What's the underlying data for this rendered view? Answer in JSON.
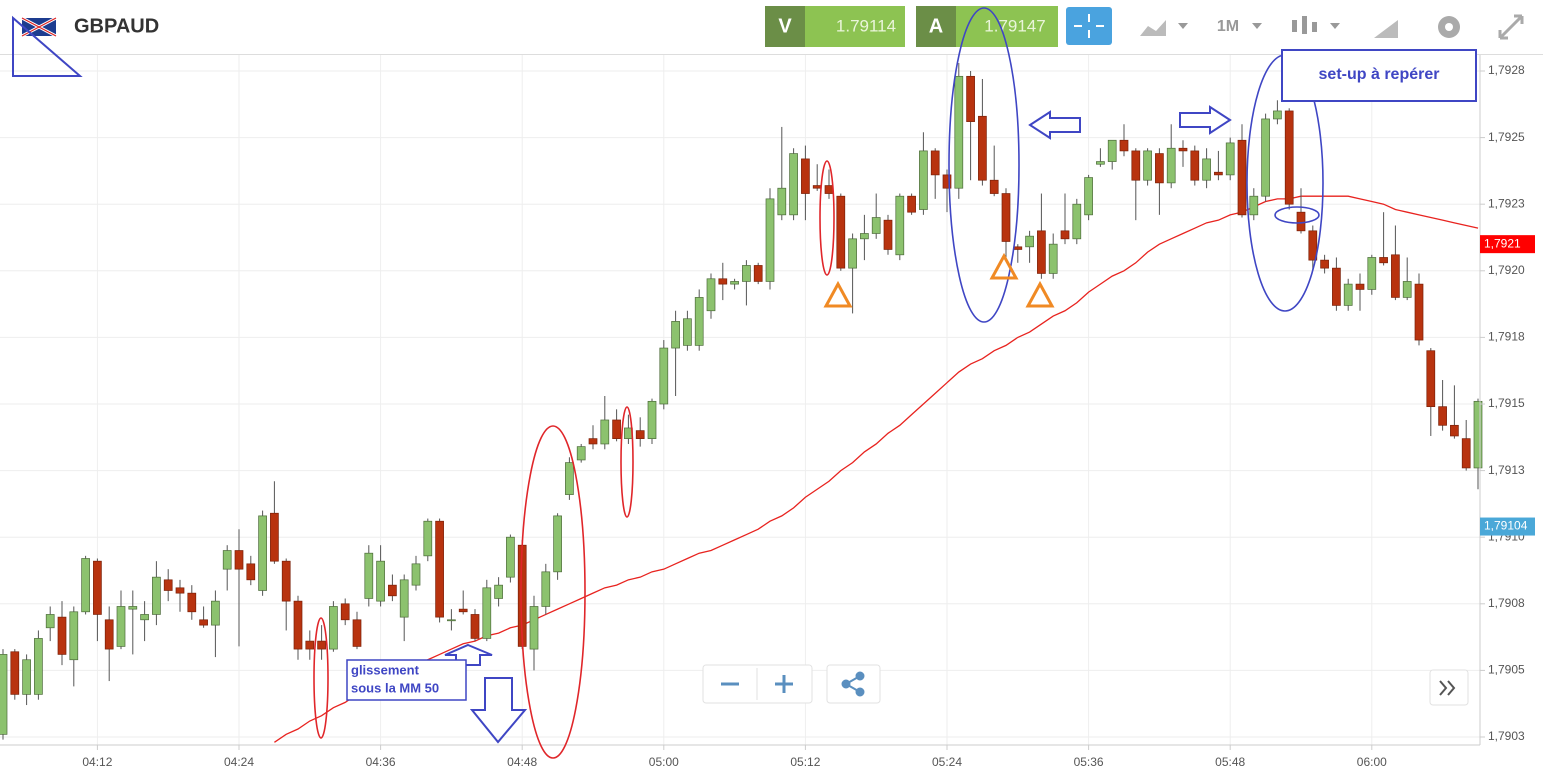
{
  "chart_data": {
    "type": "candlestick",
    "symbol": "GBPAUD",
    "bid": {
      "label": "V",
      "value": 1.79114
    },
    "ask": {
      "label": "A",
      "value": 1.79147
    },
    "timeframe": "1M",
    "up_color": "#8cc26e",
    "down_color": "#b8330f",
    "categories": [
      null,
      null,
      null,
      null,
      null,
      null,
      null,
      null,
      "04:12",
      null,
      null,
      null,
      null,
      null,
      null,
      null,
      null,
      null,
      null,
      null,
      "04:24",
      null,
      null,
      null,
      null,
      null,
      null,
      null,
      null,
      null,
      null,
      null,
      "04:36",
      null,
      null,
      null,
      null,
      null,
      null,
      null,
      null,
      null,
      null,
      null,
      "04:48",
      null,
      null,
      null,
      null,
      null,
      null,
      null,
      null,
      null,
      null,
      null,
      "05:00",
      null,
      null,
      null,
      null,
      null,
      null,
      null,
      null,
      null,
      null,
      null,
      "05:12",
      null,
      null,
      null,
      null,
      null,
      null,
      null,
      null,
      null,
      null,
      null,
      "05:24",
      null,
      null,
      null,
      null,
      null,
      null,
      null,
      null,
      null,
      null,
      null,
      "05:36",
      null,
      null,
      null,
      null,
      null,
      null,
      null,
      null,
      null,
      null,
      null,
      "05:48",
      null,
      null,
      null,
      null,
      null,
      null,
      null,
      null,
      null,
      null,
      null,
      "06:00",
      null,
      null,
      null,
      null,
      null,
      null,
      null,
      null,
      null
    ],
    "ohlc": {
      "open": [
        1.79026,
        1.79057,
        1.79041,
        1.79041,
        1.79066,
        1.7907,
        1.79054,
        1.79072,
        1.79091,
        1.79069,
        1.79059,
        1.79073,
        1.79069,
        1.79071,
        1.79084,
        1.79081,
        1.79079,
        1.79069,
        1.79067,
        1.79088,
        1.79095,
        1.7909,
        1.7908,
        1.79109,
        1.79091,
        1.79076,
        1.79061,
        1.79061,
        1.79058,
        1.79075,
        1.79069,
        1.79077,
        1.79076,
        1.79082,
        1.7907,
        1.79082,
        1.79093,
        1.79106,
        1.79069,
        1.79073,
        1.79071,
        1.79062,
        1.79077,
        1.79085,
        1.79097,
        1.79058,
        1.79074,
        1.79087,
        1.79116,
        1.79129,
        1.79137,
        1.79135,
        1.79144,
        1.79137,
        1.7914,
        1.79137,
        1.7915,
        1.79171,
        1.79172,
        1.79172,
        1.79185,
        1.79197,
        1.79195,
        1.79196,
        1.79202,
        1.79196,
        1.79221,
        1.79221,
        1.79242,
        1.79232,
        1.79232,
        1.79228,
        1.79201,
        1.79212,
        1.79214,
        1.79219,
        1.79206,
        1.79228,
        1.79223,
        1.79245,
        1.79236,
        1.79231,
        1.79273,
        1.79258,
        1.79234,
        1.79229,
        1.79209,
        1.79209,
        1.79215,
        1.79199,
        1.79215,
        1.79212,
        1.79221,
        1.7924,
        1.79241,
        1.79249,
        1.79245,
        1.79234,
        1.79244,
        1.79233,
        1.79246,
        1.79245,
        1.79234,
        1.79237,
        1.79236,
        1.79249,
        1.79221,
        1.79228,
        1.79257,
        1.7926,
        1.79222,
        1.79215,
        1.79204,
        1.79201,
        1.79187,
        1.79195,
        1.79193,
        1.79205,
        1.79206,
        1.7919,
        1.79195,
        1.7917,
        1.79149,
        1.79142,
        1.79137,
        1.79126
      ],
      "high": [
        1.79058,
        1.79058,
        1.79056,
        1.79065,
        1.79074,
        1.79076,
        1.79074,
        1.79093,
        1.79092,
        1.79074,
        1.7908,
        1.7908,
        1.79076,
        1.79091,
        1.79088,
        1.79084,
        1.79082,
        1.79074,
        1.7908,
        1.79097,
        1.79103,
        1.79093,
        1.7911,
        1.79121,
        1.79092,
        1.79078,
        1.79065,
        1.79067,
        1.79076,
        1.79077,
        1.79072,
        1.79097,
        1.79097,
        1.79086,
        1.79086,
        1.79093,
        1.79107,
        1.79107,
        1.79073,
        1.7908,
        1.79073,
        1.79084,
        1.79085,
        1.79101,
        1.79099,
        1.79078,
        1.7909,
        1.79109,
        1.7913,
        1.79135,
        1.79142,
        1.79153,
        1.79148,
        1.79146,
        1.79145,
        1.79152,
        1.79174,
        1.79185,
        1.79185,
        1.79193,
        1.79199,
        1.79203,
        1.79197,
        1.79204,
        1.79203,
        1.79231,
        1.79254,
        1.79246,
        1.79247,
        1.7924,
        1.79238,
        1.79229,
        1.79214,
        1.79221,
        1.79229,
        1.79221,
        1.79229,
        1.79229,
        1.79252,
        1.79246,
        1.79238,
        1.79278,
        1.79275,
        1.79272,
        1.79247,
        1.79231,
        1.7921,
        1.79215,
        1.79229,
        1.79214,
        1.79229,
        1.79227,
        1.79236,
        1.79246,
        1.79249,
        1.79255,
        1.79246,
        1.79246,
        1.79246,
        1.79255,
        1.79249,
        1.79247,
        1.79246,
        1.79245,
        1.7925,
        1.79255,
        1.79231,
        1.79259,
        1.79264,
        1.79261,
        1.79231,
        1.79217,
        1.79206,
        1.79205,
        1.79197,
        1.79199,
        1.79206,
        1.79222,
        1.79217,
        1.79205,
        1.79199,
        1.79171,
        1.79159,
        1.79157,
        1.79144,
        1.79152
      ],
      "low": [
        1.79024,
        1.79039,
        1.79037,
        1.79039,
        1.79061,
        1.79052,
        1.79044,
        1.79071,
        1.79061,
        1.79046,
        1.79058,
        1.79056,
        1.79061,
        1.79067,
        1.79076,
        1.79072,
        1.79069,
        1.79066,
        1.79055,
        1.7908,
        1.79059,
        1.79082,
        1.79078,
        1.7909,
        1.79065,
        1.79054,
        1.79054,
        1.79054,
        1.79057,
        1.79067,
        1.79058,
        1.79074,
        1.79074,
        1.79076,
        1.79061,
        1.7908,
        1.79091,
        1.79068,
        1.79065,
        1.79071,
        1.79061,
        1.79061,
        1.79074,
        1.79083,
        1.79058,
        1.7905,
        1.79071,
        1.79084,
        1.79114,
        1.79128,
        1.79133,
        1.79133,
        1.79136,
        1.79135,
        1.79134,
        1.79135,
        1.79148,
        1.79153,
        1.7917,
        1.7917,
        1.79182,
        1.79189,
        1.79193,
        1.79187,
        1.79195,
        1.79193,
        1.79219,
        1.79219,
        1.79219,
        1.7923,
        1.79227,
        1.792,
        1.79184,
        1.79204,
        1.79212,
        1.79206,
        1.79204,
        1.79221,
        1.79221,
        1.79227,
        1.79222,
        1.79227,
        1.79234,
        1.79232,
        1.79228,
        1.79205,
        1.79203,
        1.79203,
        1.79197,
        1.79197,
        1.7921,
        1.7921,
        1.79219,
        1.79239,
        1.79238,
        1.79243,
        1.79219,
        1.79232,
        1.79221,
        1.79231,
        1.79239,
        1.79232,
        1.79231,
        1.79234,
        1.79234,
        1.7922,
        1.79219,
        1.79226,
        1.79255,
        1.79223,
        1.79214,
        1.792,
        1.79199,
        1.79185,
        1.79185,
        1.79185,
        1.79191,
        1.79202,
        1.79189,
        1.79189,
        1.79172,
        1.79138,
        1.7914,
        1.79137,
        1.79125,
        1.79118
      ],
      "close": [
        1.79056,
        1.79041,
        1.79054,
        1.79062,
        1.79071,
        1.79056,
        1.79072,
        1.79092,
        1.79071,
        1.79058,
        1.79074,
        1.79074,
        1.79071,
        1.79085,
        1.7908,
        1.79079,
        1.79072,
        1.79067,
        1.79076,
        1.79095,
        1.79088,
        1.79084,
        1.79108,
        1.79091,
        1.79076,
        1.79058,
        1.79058,
        1.79058,
        1.79074,
        1.79069,
        1.79059,
        1.79094,
        1.79091,
        1.79078,
        1.79084,
        1.7909,
        1.79106,
        1.7907,
        1.79069,
        1.79072,
        1.79062,
        1.79081,
        1.79082,
        1.791,
        1.79059,
        1.79074,
        1.79087,
        1.79108,
        1.79128,
        1.79134,
        1.79135,
        1.79144,
        1.79137,
        1.79141,
        1.79137,
        1.79151,
        1.79171,
        1.79181,
        1.79182,
        1.7919,
        1.79197,
        1.79195,
        1.79196,
        1.79202,
        1.79196,
        1.79227,
        1.79231,
        1.79244,
        1.79229,
        1.79231,
        1.79229,
        1.79201,
        1.79212,
        1.79214,
        1.7922,
        1.79208,
        1.79228,
        1.79222,
        1.79245,
        1.79236,
        1.79231,
        1.79273,
        1.79256,
        1.79234,
        1.79229,
        1.79211,
        1.79208,
        1.79213,
        1.79199,
        1.7921,
        1.79212,
        1.79225,
        1.79235,
        1.79241,
        1.79249,
        1.79245,
        1.79234,
        1.79245,
        1.79233,
        1.79246,
        1.79245,
        1.79234,
        1.79242,
        1.79236,
        1.79248,
        1.79221,
        1.79228,
        1.79257,
        1.7926,
        1.79225,
        1.79215,
        1.79204,
        1.79201,
        1.79187,
        1.79195,
        1.79193,
        1.79205,
        1.79203,
        1.7919,
        1.79196,
        1.79174,
        1.79149,
        1.79142,
        1.79138,
        1.79126,
        1.79151
      ]
    },
    "moving_average": {
      "color": "#e8231f",
      "values": [
        null,
        null,
        null,
        null,
        null,
        null,
        null,
        null,
        null,
        null,
        null,
        null,
        null,
        null,
        null,
        null,
        null,
        null,
        null,
        null,
        null,
        null,
        null,
        1.79023,
        1.79026,
        1.79028,
        1.79031,
        1.79033,
        1.79036,
        1.79038,
        1.79041,
        1.79043,
        1.79046,
        1.79048,
        1.7905,
        1.79052,
        1.79054,
        1.79056,
        1.79058,
        1.7906,
        1.79061,
        1.79063,
        1.79064,
        1.79066,
        1.79067,
        1.79069,
        1.79071,
        1.79073,
        1.79075,
        1.79077,
        1.79079,
        1.79081,
        1.79082,
        1.79084,
        1.79085,
        1.79087,
        1.79088,
        1.7909,
        1.79092,
        1.79094,
        1.79095,
        1.79097,
        1.79099,
        1.79101,
        1.79103,
        1.79106,
        1.79108,
        1.79111,
        1.79115,
        1.79118,
        1.79121,
        1.79125,
        1.79128,
        1.79132,
        1.79135,
        1.79139,
        1.79142,
        1.79146,
        1.7915,
        1.79154,
        1.79158,
        1.79162,
        1.79165,
        1.79167,
        1.7917,
        1.79172,
        1.79175,
        1.79177,
        1.7918,
        1.79183,
        1.79185,
        1.79188,
        1.79192,
        1.79195,
        1.79198,
        1.792,
        1.79203,
        1.79207,
        1.7921,
        1.79212,
        1.79214,
        1.79216,
        1.79218,
        1.79219,
        1.79221,
        1.79222,
        1.79224,
        1.79226,
        1.79227,
        1.79227,
        1.79228,
        1.79228,
        1.79228,
        1.79228,
        1.79228,
        1.79227,
        1.79226,
        1.79225,
        1.79223,
        1.79222,
        1.79221,
        1.7922,
        1.79219,
        1.79218,
        1.79217,
        1.79216
      ]
    },
    "ylim": [
      1.79022,
      1.79281
    ],
    "yticks": [
      {
        "value": 1.79275,
        "label": "1,7928"
      },
      {
        "value": 1.7925,
        "label": "1,7925"
      },
      {
        "value": 1.79225,
        "label": "1,7923"
      },
      {
        "value": 1.792,
        "label": "1,7920"
      },
      {
        "value": 1.79175,
        "label": "1,7918"
      },
      {
        "value": 1.7915,
        "label": "1,7915"
      },
      {
        "value": 1.79125,
        "label": "1,7913"
      },
      {
        "value": 1.791,
        "label": "1,7910"
      },
      {
        "value": 1.79075,
        "label": "1,7908"
      },
      {
        "value": 1.7905,
        "label": "1,7905"
      },
      {
        "value": 1.79025,
        "label": "1,7903"
      }
    ],
    "price_markers": [
      {
        "value": 1.7921,
        "label": "1,7921",
        "color": "#ff0000"
      },
      {
        "value": 1.79104,
        "label": "1,79104",
        "color": "#4aa8d8"
      }
    ],
    "grid": true,
    "annotations": {
      "setup": "set-up à repérer",
      "slip_line1": "glissement",
      "slip_line2": "sous la MM 50"
    }
  }
}
